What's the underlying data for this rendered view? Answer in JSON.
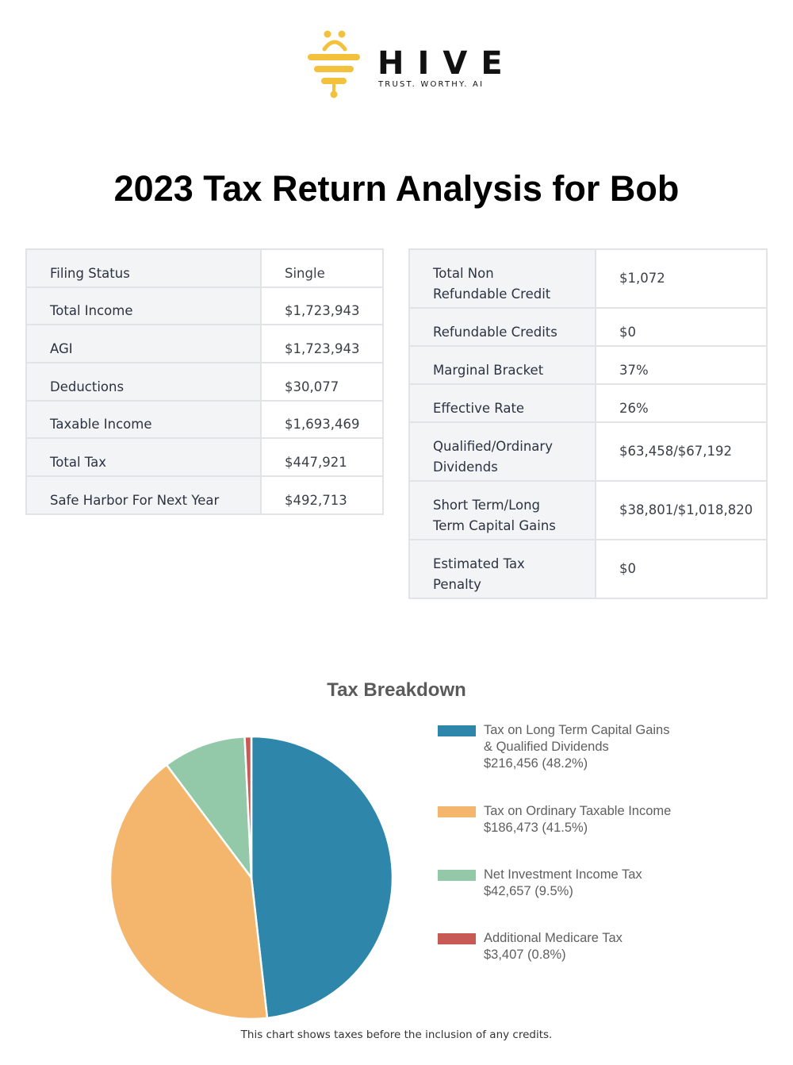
{
  "logo": {
    "wordmark": "HIVE",
    "tagline": "TRUST. WORTHY. AI",
    "accent_color": "#f4c13d"
  },
  "page_title": "2023 Tax Return Analysis for Bob",
  "summary_left": {
    "rows": [
      {
        "label": "Filing Status",
        "value": "Single"
      },
      {
        "label": "Total Income",
        "value": "$1,723,943"
      },
      {
        "label": "AGI",
        "value": "$1,723,943"
      },
      {
        "label": "Deductions",
        "value": "$30,077"
      },
      {
        "label": "Taxable Income",
        "value": "$1,693,469"
      },
      {
        "label": "Total Tax",
        "value": "$447,921"
      },
      {
        "label": "Safe Harbor For Next Year",
        "value": "$492,713"
      }
    ]
  },
  "summary_right": {
    "rows": [
      {
        "label_line1": "Total Non",
        "label_line2": "Refundable Credit",
        "value": "$1,072"
      },
      {
        "label_line1": "Refundable Credits",
        "label_line2": "",
        "value": "$0"
      },
      {
        "label_line1": "Marginal Bracket",
        "label_line2": "",
        "value": "37%"
      },
      {
        "label_line1": "Effective Rate",
        "label_line2": "",
        "value": "26%"
      },
      {
        "label_line1": "Qualified/Ordinary",
        "label_line2": "Dividends",
        "value": "$63,458/$67,192"
      },
      {
        "label_line1": "Short Term/Long",
        "label_line2": "Term Capital Gains",
        "value": "$38,801/$1,018,820"
      },
      {
        "label_line1": "Estimated Tax",
        "label_line2": "Penalty",
        "value": "$0"
      }
    ]
  },
  "chart_data": {
    "type": "pie",
    "title": "Tax Breakdown",
    "categories": [
      "Tax on Long Term Capital Gains & Qualified Dividends",
      "Tax on Ordinary Taxable Income",
      "Net Investment Income Tax",
      "Additional Medicare Tax"
    ],
    "values": [
      216456,
      186473,
      42657,
      3407
    ],
    "percentages": [
      48.2,
      41.5,
      9.5,
      0.8
    ],
    "colors": [
      "#2e86ab",
      "#f4b66c",
      "#93c9a8",
      "#c75a55"
    ],
    "legend_position": "right",
    "start_angle": "12 o'clock, clockwise",
    "footnote": "This chart shows taxes before the inclusion of any credits."
  },
  "legend": [
    {
      "line1": "Tax on Long Term Capital Gains",
      "line2": "& Qualified Dividends",
      "line3": "$216,456 (48.2%)",
      "color": "#2e86ab"
    },
    {
      "line1": "Tax on Ordinary Taxable Income",
      "line2": "$186,473 (41.5%)",
      "line3": "",
      "color": "#f4b66c"
    },
    {
      "line1": "Net Investment Income Tax",
      "line2": "$42,657 (9.5%)",
      "line3": "",
      "color": "#93c9a8"
    },
    {
      "line1": "Additional Medicare Tax",
      "line2": "$3,407 (0.8%)",
      "line3": "",
      "color": "#c75a55"
    }
  ]
}
